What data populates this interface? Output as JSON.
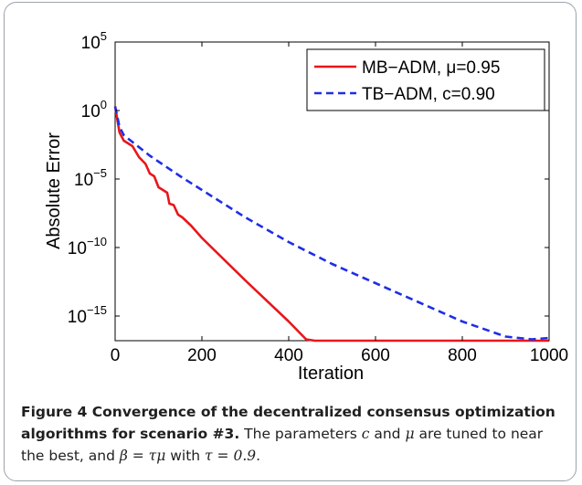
{
  "chart_data": {
    "type": "line",
    "xlabel": "Iteration",
    "ylabel": "Absolute Error",
    "xlim": [
      0,
      1000
    ],
    "ylim_exponent": [
      -15,
      5
    ],
    "y_scale": "log",
    "x_ticks": [
      "0",
      "200",
      "400",
      "600",
      "800",
      "1000"
    ],
    "y_ticks": [
      {
        "base": "10",
        "exp": "5",
        "value": 5
      },
      {
        "base": "10",
        "exp": "0",
        "value": 0
      },
      {
        "base": "10",
        "exp": "−5",
        "value": -5
      },
      {
        "base": "10",
        "exp": "−10",
        "value": -10
      },
      {
        "base": "10",
        "exp": "−15",
        "value": -15
      }
    ],
    "legend_position": "top-right",
    "series": [
      {
        "name": "MB−ADM, μ=0.95",
        "color": "#e8161b",
        "style": "solid",
        "x": [
          0,
          10,
          20,
          40,
          55,
          70,
          80,
          90,
          100,
          110,
          120,
          125,
          135,
          145,
          155,
          175,
          200,
          300,
          400,
          440,
          460,
          500,
          600,
          700,
          800,
          900,
          1000
        ],
        "y": [
          0.3,
          -1.6,
          -2.2,
          -2.6,
          -3.4,
          -3.9,
          -4.6,
          -4.8,
          -5.6,
          -5.8,
          -6.0,
          -6.8,
          -6.9,
          -7.6,
          -7.8,
          -8.4,
          -9.3,
          -12.4,
          -15.4,
          -16.7,
          -16.95,
          -16.95,
          -16.9,
          -16.95,
          -16.9,
          -16.95,
          -16.9
        ]
      },
      {
        "name": "TB−ADM, c=0.90",
        "color": "#1f2ee6",
        "style": "dashed",
        "x": [
          0,
          10,
          20,
          40,
          80,
          150,
          200,
          300,
          400,
          500,
          600,
          700,
          800,
          900,
          960,
          1000
        ],
        "y": [
          0.3,
          -1.2,
          -1.8,
          -2.3,
          -3.3,
          -4.8,
          -5.8,
          -7.8,
          -9.6,
          -11.2,
          -12.6,
          -14.0,
          -15.4,
          -16.5,
          -16.7,
          -16.6
        ]
      }
    ]
  },
  "caption": {
    "lead": "Figure 4 Convergence of the decentralized consensus optimization algorithms for scenario #3.",
    "p1": " The parameters ",
    "c": "c",
    "p2": " and ",
    "mu": "μ",
    "p3": " are tuned to near the best, and ",
    "formula": "β = τμ",
    "p4": " with ",
    "tau": "τ = 0.9",
    "p5": "."
  }
}
